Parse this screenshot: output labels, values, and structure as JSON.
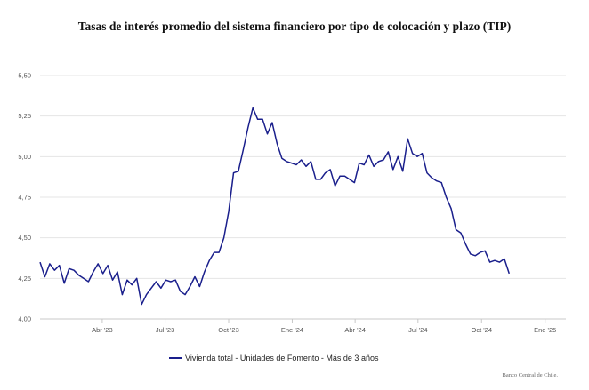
{
  "chart_data": {
    "type": "line",
    "title": "Tasas de interés promedio del sistema financiero por tipo de colocación y plazo (TIP)",
    "xlabel": "",
    "ylabel": "",
    "ylim": [
      4.0,
      5.5
    ],
    "yticks": [
      "4,00",
      "4,25",
      "4,50",
      "4,75",
      "5,00",
      "5,25",
      "5,50"
    ],
    "x_start": "2023-01-01",
    "x_end": "2025-01-31",
    "xticks": [
      {
        "date": "2023-04-01",
        "label": "Abr '23"
      },
      {
        "date": "2023-07-01",
        "label": "Jul '23"
      },
      {
        "date": "2023-10-01",
        "label": "Oct '23"
      },
      {
        "date": "2024-01-01",
        "label": "Ene '24"
      },
      {
        "date": "2024-04-01",
        "label": "Abr '24"
      },
      {
        "date": "2024-07-01",
        "label": "Jul '24"
      },
      {
        "date": "2024-10-01",
        "label": "Oct '24"
      },
      {
        "date": "2025-01-01",
        "label": "Ene '25"
      }
    ],
    "grid": true,
    "legend_position": "bottom-left",
    "series": [
      {
        "name": "Vivienda total - Unidades de Fomento - Más de 3 años",
        "color": "#1a1f8c",
        "points": [
          [
            "2023-01-01",
            4.35
          ],
          [
            "2023-01-08",
            4.26
          ],
          [
            "2023-01-15",
            4.34
          ],
          [
            "2023-01-22",
            4.3
          ],
          [
            "2023-01-29",
            4.33
          ],
          [
            "2023-02-05",
            4.22
          ],
          [
            "2023-02-12",
            4.31
          ],
          [
            "2023-02-19",
            4.3
          ],
          [
            "2023-02-26",
            4.27
          ],
          [
            "2023-03-05",
            4.25
          ],
          [
            "2023-03-12",
            4.23
          ],
          [
            "2023-03-19",
            4.29
          ],
          [
            "2023-03-26",
            4.34
          ],
          [
            "2023-04-02",
            4.28
          ],
          [
            "2023-04-09",
            4.33
          ],
          [
            "2023-04-16",
            4.24
          ],
          [
            "2023-04-23",
            4.29
          ],
          [
            "2023-04-30",
            4.15
          ],
          [
            "2023-05-07",
            4.24
          ],
          [
            "2023-05-14",
            4.21
          ],
          [
            "2023-05-21",
            4.25
          ],
          [
            "2023-05-28",
            4.09
          ],
          [
            "2023-06-04",
            4.15
          ],
          [
            "2023-06-11",
            4.19
          ],
          [
            "2023-06-18",
            4.23
          ],
          [
            "2023-06-25",
            4.19
          ],
          [
            "2023-07-02",
            4.24
          ],
          [
            "2023-07-09",
            4.23
          ],
          [
            "2023-07-16",
            4.24
          ],
          [
            "2023-07-23",
            4.17
          ],
          [
            "2023-07-30",
            4.15
          ],
          [
            "2023-08-06",
            4.2
          ],
          [
            "2023-08-13",
            4.26
          ],
          [
            "2023-08-20",
            4.2
          ],
          [
            "2023-08-27",
            4.29
          ],
          [
            "2023-09-03",
            4.36
          ],
          [
            "2023-09-10",
            4.41
          ],
          [
            "2023-09-17",
            4.41
          ],
          [
            "2023-09-24",
            4.5
          ],
          [
            "2023-10-01",
            4.66
          ],
          [
            "2023-10-08",
            4.9
          ],
          [
            "2023-10-15",
            4.91
          ],
          [
            "2023-10-22",
            5.04
          ],
          [
            "2023-10-29",
            5.18
          ],
          [
            "2023-11-05",
            5.3
          ],
          [
            "2023-11-12",
            5.23
          ],
          [
            "2023-11-19",
            5.23
          ],
          [
            "2023-11-26",
            5.14
          ],
          [
            "2023-12-03",
            5.21
          ],
          [
            "2023-12-10",
            5.08
          ],
          [
            "2023-12-17",
            4.99
          ],
          [
            "2023-12-24",
            4.97
          ],
          [
            "2023-12-31",
            4.96
          ],
          [
            "2024-01-07",
            4.95
          ],
          [
            "2024-01-14",
            4.98
          ],
          [
            "2024-01-21",
            4.94
          ],
          [
            "2024-01-28",
            4.97
          ],
          [
            "2024-02-04",
            4.86
          ],
          [
            "2024-02-11",
            4.86
          ],
          [
            "2024-02-18",
            4.9
          ],
          [
            "2024-02-25",
            4.92
          ],
          [
            "2024-03-03",
            4.82
          ],
          [
            "2024-03-10",
            4.88
          ],
          [
            "2024-03-17",
            4.88
          ],
          [
            "2024-03-24",
            4.86
          ],
          [
            "2024-03-31",
            4.84
          ],
          [
            "2024-04-07",
            4.96
          ],
          [
            "2024-04-14",
            4.95
          ],
          [
            "2024-04-21",
            5.01
          ],
          [
            "2024-04-28",
            4.94
          ],
          [
            "2024-05-05",
            4.97
          ],
          [
            "2024-05-12",
            4.98
          ],
          [
            "2024-05-19",
            5.03
          ],
          [
            "2024-05-26",
            4.92
          ],
          [
            "2024-06-02",
            5.0
          ],
          [
            "2024-06-09",
            4.91
          ],
          [
            "2024-06-16",
            5.11
          ],
          [
            "2024-06-23",
            5.02
          ],
          [
            "2024-06-30",
            5.0
          ],
          [
            "2024-07-07",
            5.02
          ],
          [
            "2024-07-14",
            4.9
          ],
          [
            "2024-07-21",
            4.87
          ],
          [
            "2024-07-28",
            4.85
          ],
          [
            "2024-08-04",
            4.84
          ],
          [
            "2024-08-11",
            4.75
          ],
          [
            "2024-08-18",
            4.68
          ],
          [
            "2024-08-25",
            4.55
          ],
          [
            "2024-09-01",
            4.53
          ],
          [
            "2024-09-08",
            4.46
          ],
          [
            "2024-09-15",
            4.4
          ],
          [
            "2024-09-22",
            4.39
          ],
          [
            "2024-09-29",
            4.41
          ],
          [
            "2024-10-06",
            4.42
          ],
          [
            "2024-10-13",
            4.35
          ],
          [
            "2024-10-20",
            4.36
          ],
          [
            "2024-10-27",
            4.35
          ],
          [
            "2024-11-03",
            4.37
          ],
          [
            "2024-11-10",
            4.28
          ]
        ]
      }
    ],
    "credits": "Banco Central de Chile."
  }
}
